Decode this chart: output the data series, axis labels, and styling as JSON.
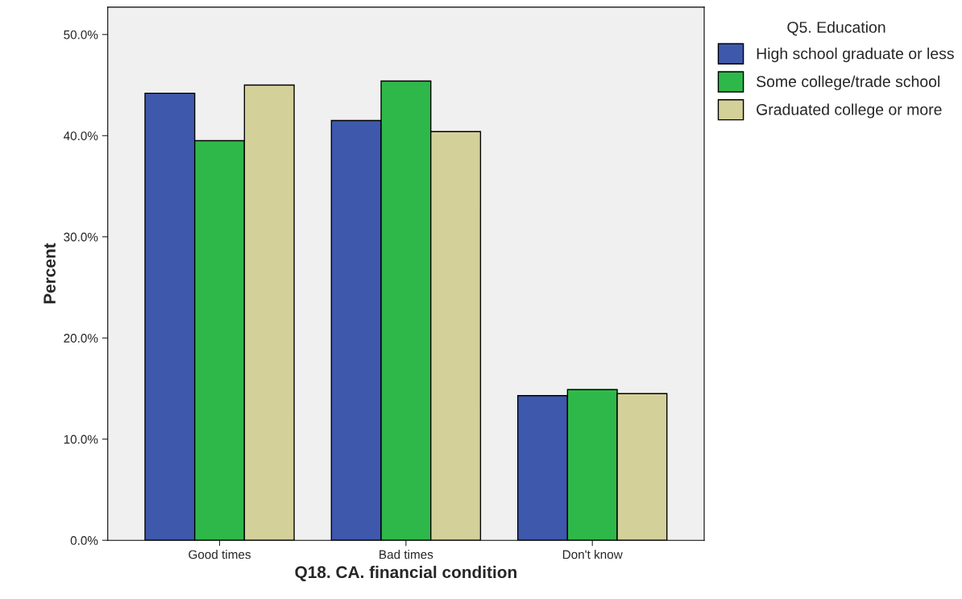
{
  "chart_data": {
    "type": "bar",
    "xlabel": "Q18. CA. financial condition",
    "ylabel": "Percent",
    "legend_title": "Q5. Education",
    "legend": "right",
    "categories": [
      "Good times",
      "Bad times",
      "Don't know"
    ],
    "series": [
      {
        "name": "High school graduate or less",
        "color": "#3e58ac",
        "values": [
          44.2,
          41.5,
          14.3
        ]
      },
      {
        "name": "Some college/trade school",
        "color": "#2fb84a",
        "values": [
          39.5,
          45.4,
          14.9
        ]
      },
      {
        "name": "Graduated college or more",
        "color": "#d4d09a",
        "values": [
          45.0,
          40.4,
          14.5
        ]
      }
    ],
    "ylim": [
      0,
      52.7
    ],
    "yticks": [
      {
        "value": 0,
        "label": "0.0%"
      },
      {
        "value": 10,
        "label": "10.0%"
      },
      {
        "value": 20,
        "label": "20.0%"
      },
      {
        "value": 30,
        "label": "30.0%"
      },
      {
        "value": 40,
        "label": "40.0%"
      },
      {
        "value": 50,
        "label": "50.0%"
      }
    ],
    "grid": false
  }
}
